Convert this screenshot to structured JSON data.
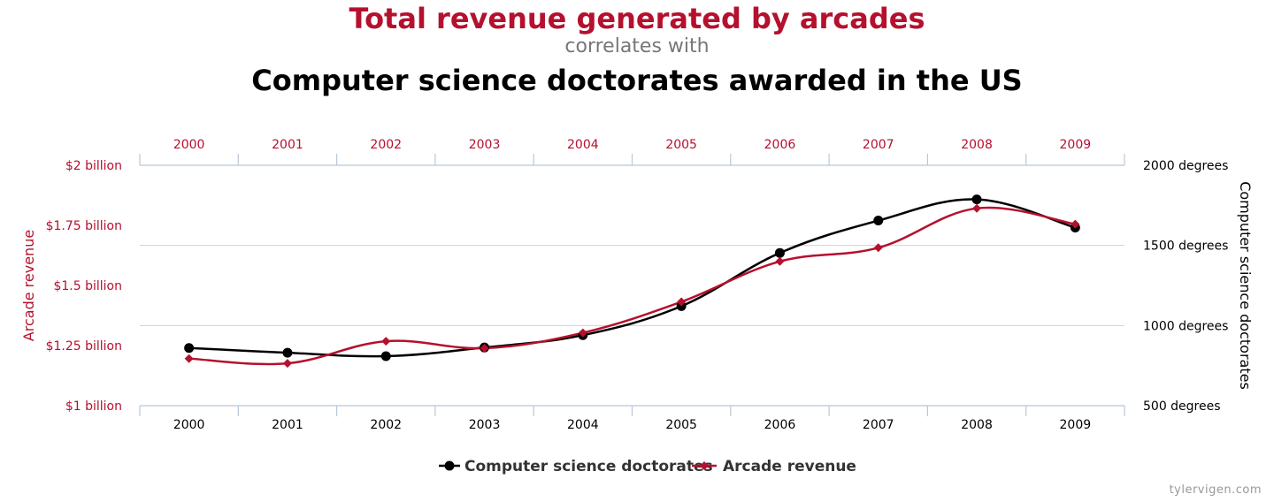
{
  "header": {
    "title_primary": "Total revenue generated by arcades",
    "connector": "correlates with",
    "title_secondary": "Computer science doctorates awarded in the US"
  },
  "footer": {
    "credit": "tylervigen.com"
  },
  "colors": {
    "revenue": "#b5102e",
    "doctorates": "#000000",
    "grid": "#c9d3df",
    "axis": "#b8c8d8"
  },
  "chart_data": {
    "type": "line",
    "categories": [
      "2000",
      "2001",
      "2002",
      "2003",
      "2004",
      "2005",
      "2006",
      "2007",
      "2008",
      "2009"
    ],
    "y_left": {
      "label": "Arcade revenue",
      "range": [
        1,
        2
      ],
      "ticks": [
        1,
        1.25,
        1.5,
        1.75,
        2
      ],
      "tick_labels": [
        "$1 billion",
        "$1.25 billion",
        "$1.5 billion",
        "$1.75 billion",
        "$2 billion"
      ]
    },
    "y_right": {
      "label": "Computer science doctorates",
      "range": [
        500,
        2000
      ],
      "ticks": [
        500,
        1000,
        1500,
        2000
      ],
      "tick_labels": [
        "500 degrees",
        "1000 degrees",
        "1500 degrees",
        "2000 degrees"
      ]
    },
    "series": [
      {
        "name": "Computer science doctorates",
        "axis": "right",
        "marker": "circle",
        "values": [
          860,
          830,
          809,
          863,
          940,
          1121,
          1453,
          1655,
          1787,
          1611
        ]
      },
      {
        "name": "Arcade revenue",
        "axis": "left",
        "marker": "diamond",
        "values": [
          1.196,
          1.176,
          1.268,
          1.239,
          1.303,
          1.432,
          1.6,
          1.657,
          1.821,
          1.755
        ]
      }
    ],
    "grid": true,
    "legend_position": "bottom-center"
  }
}
